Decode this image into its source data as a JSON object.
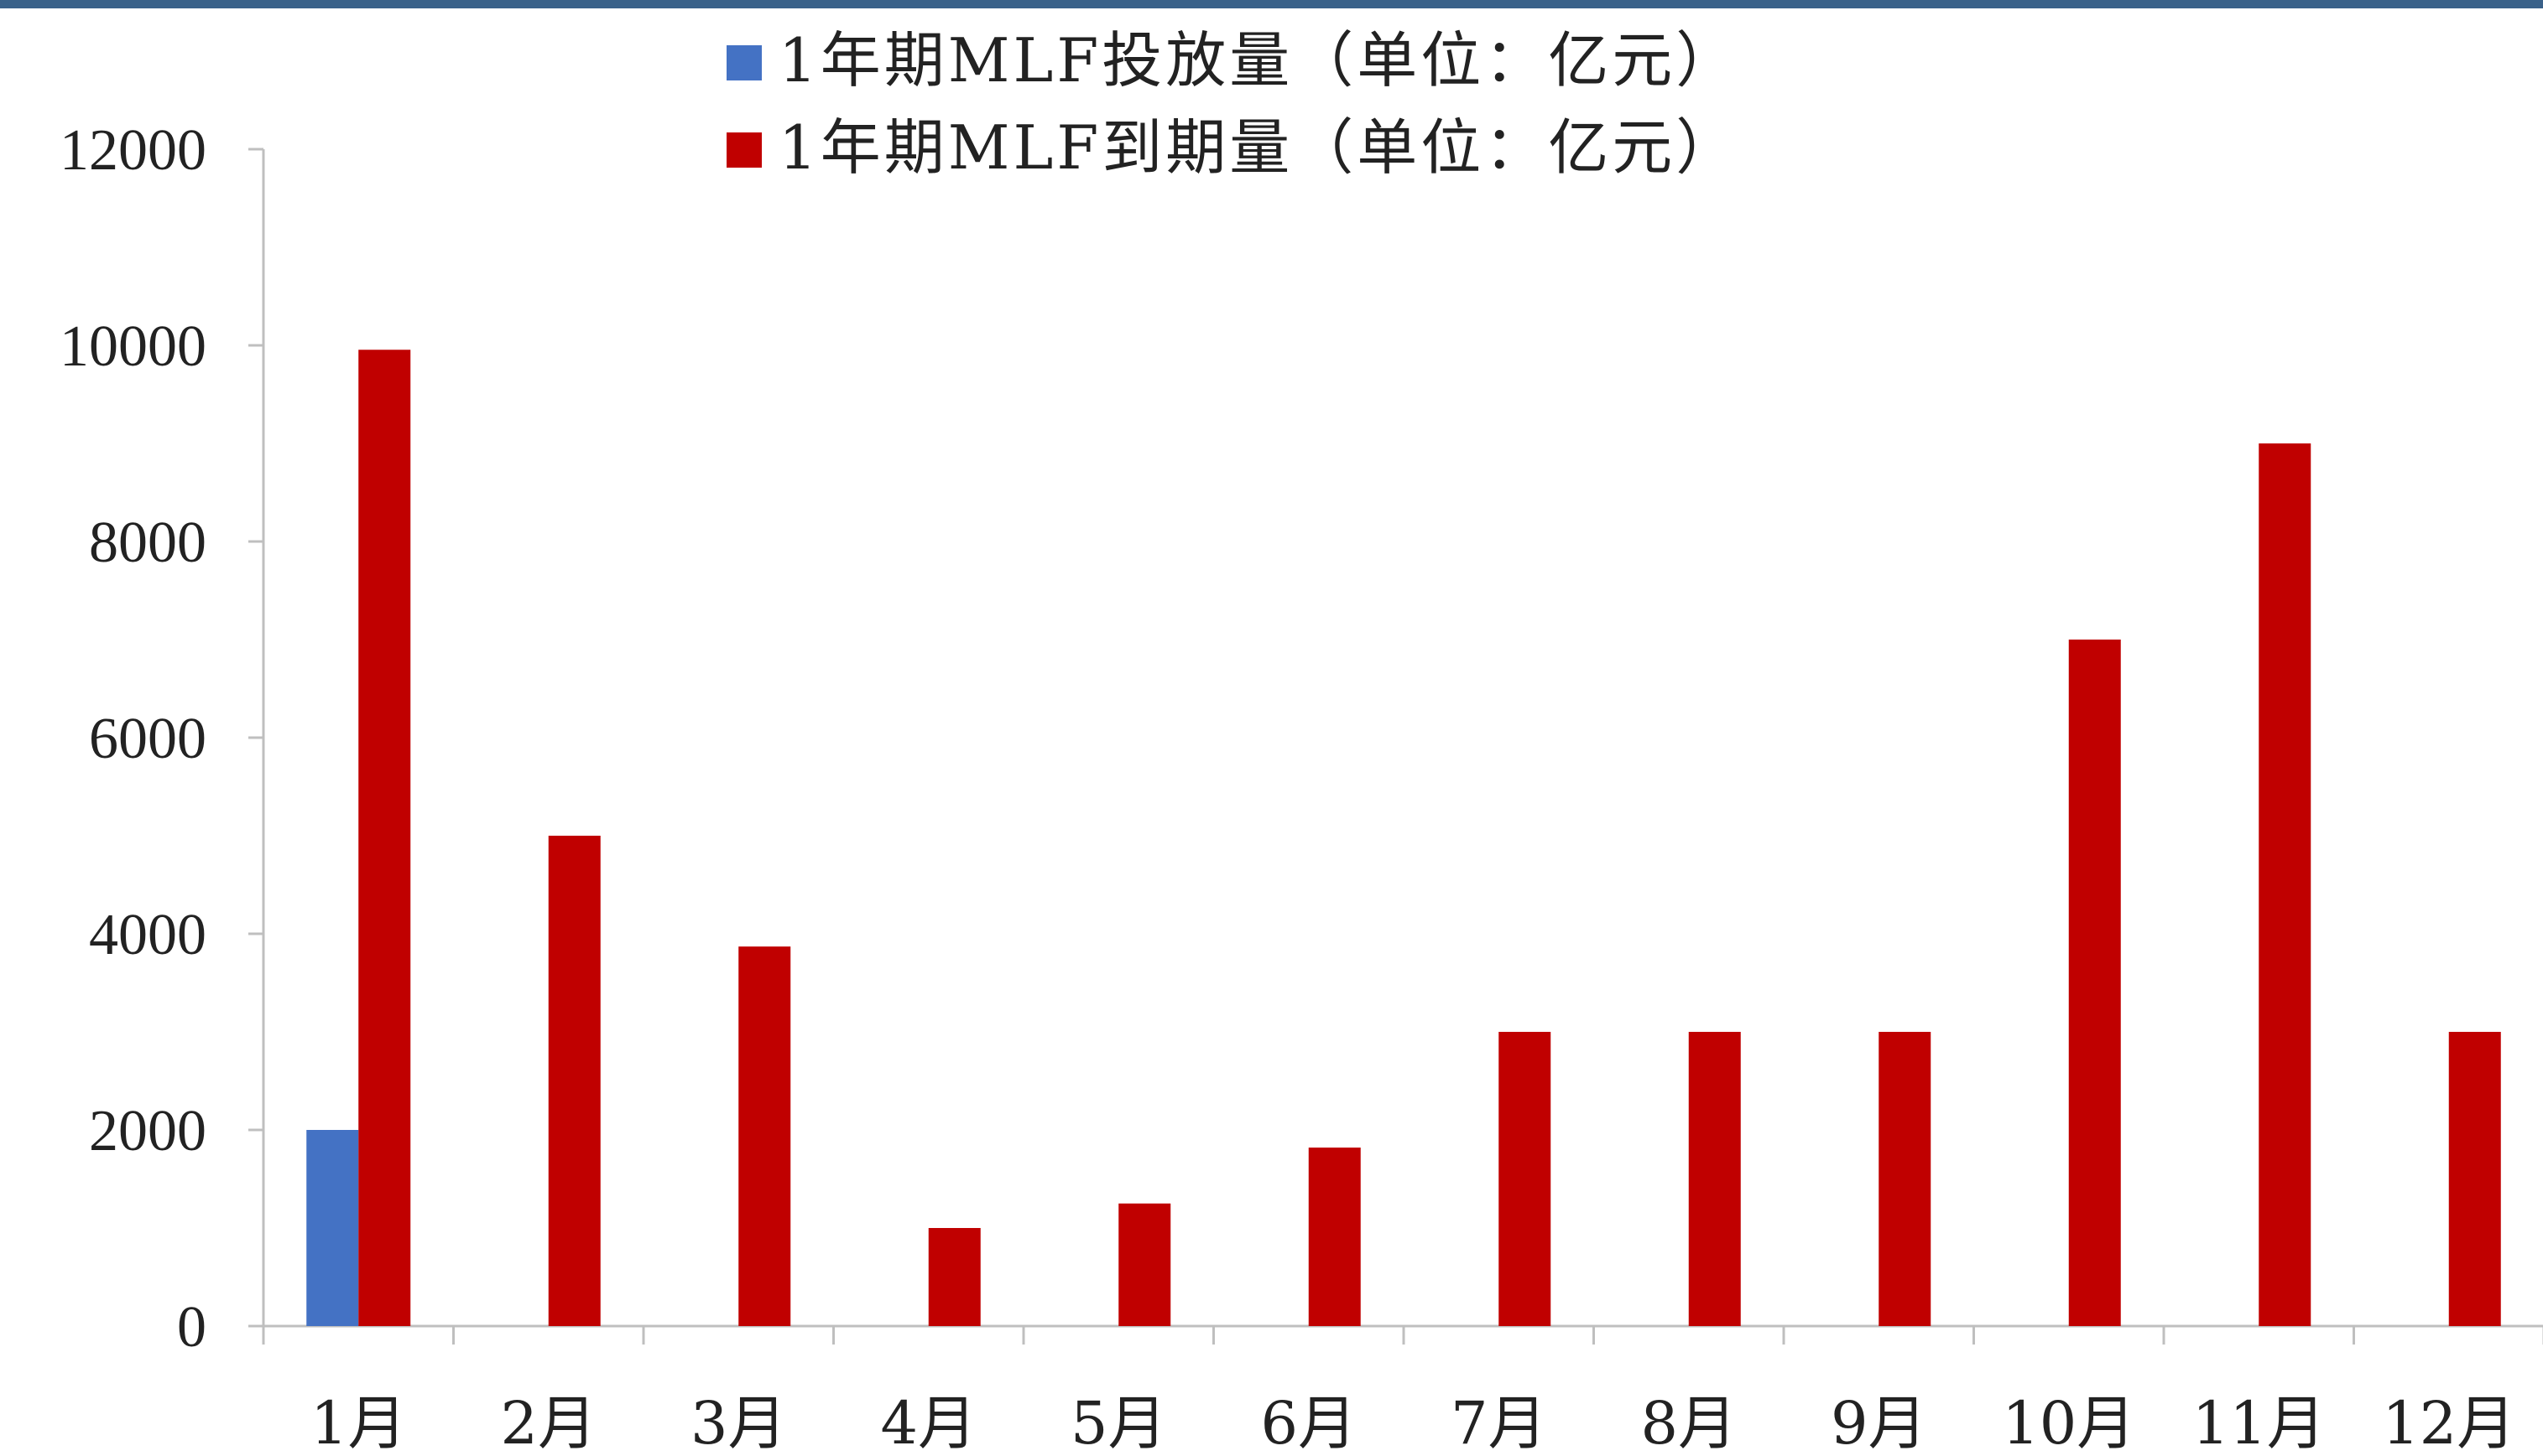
{
  "chart_data": {
    "type": "bar",
    "categories": [
      "1月",
      "2月",
      "3月",
      "4月",
      "5月",
      "6月",
      "7月",
      "8月",
      "9月",
      "10月",
      "11月",
      "12月"
    ],
    "series": [
      {
        "name": "1年期MLF投放量（单位：亿元）",
        "color": "#4472c4",
        "values": [
          2000,
          0,
          0,
          0,
          0,
          0,
          0,
          0,
          0,
          0,
          0,
          0
        ]
      },
      {
        "name": "1年期MLF到期量（单位：亿元）",
        "color": "#c00000",
        "values": [
          9955,
          5000,
          3870,
          1000,
          1250,
          1820,
          3000,
          3000,
          3000,
          7000,
          9000,
          3000
        ]
      }
    ],
    "yticks": [
      "0",
      "2000",
      "4000",
      "6000",
      "8000",
      "10000",
      "12000"
    ],
    "ylim": [
      0,
      12000
    ],
    "legend_position": "top-center",
    "grid": false
  },
  "accent_color": "#3a6189"
}
